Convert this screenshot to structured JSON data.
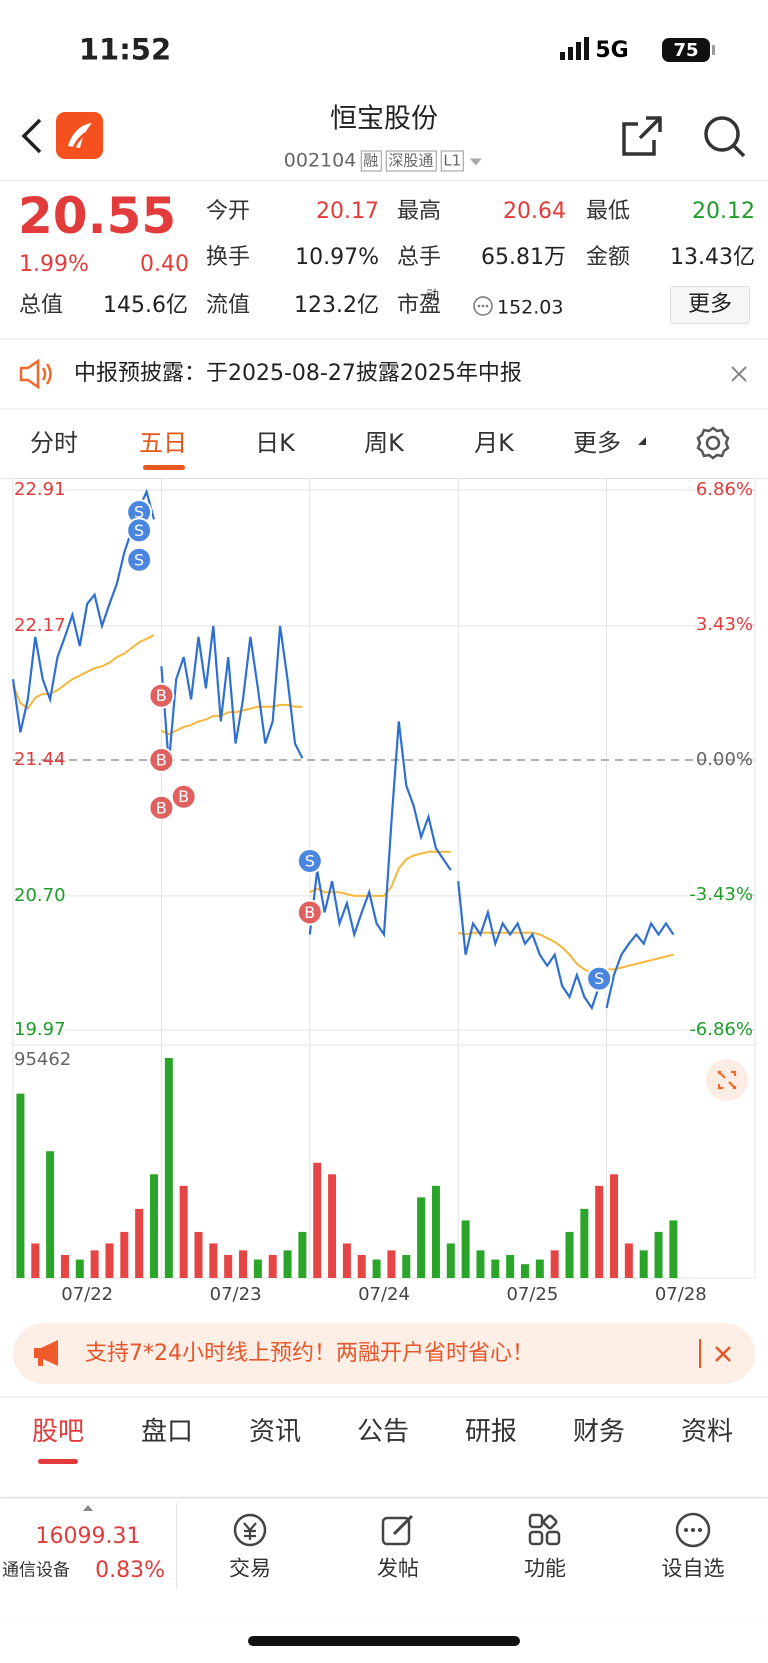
{
  "status": {
    "time": "11:52",
    "network": "5G",
    "battery": "75"
  },
  "header": {
    "title": "恒宝股份",
    "code": "002104",
    "tags": [
      "融",
      "深股通",
      "L1"
    ]
  },
  "quote": {
    "price": "20.55",
    "change_pct": "1.99%",
    "change": "0.40",
    "fields": [
      [
        "今开",
        "20.17"
      ],
      [
        "最高",
        "20.64"
      ],
      [
        "最低",
        "20.12"
      ],
      [
        "换手",
        "10.97%"
      ],
      [
        "总手",
        "65.81万"
      ],
      [
        "金额",
        "13.43亿"
      ],
      [
        "总值",
        "145.6亿"
      ],
      [
        "流值",
        "123.2亿"
      ],
      [
        "市盈",
        "152.03"
      ]
    ],
    "pe_sup": "动",
    "more": "更多"
  },
  "notice": "中报预披露：于2025-08-27披露2025年中报",
  "tabs": [
    "分时",
    "五日",
    "日K",
    "周K",
    "月K",
    "更多"
  ],
  "chart_data": {
    "type": "line",
    "ylim": [
      19.97,
      22.91
    ],
    "yticks": [
      19.97,
      {
        "value": 20.7,
        "label": "20.70"
      },
      21.44,
      22.17,
      22.91
    ],
    "y2lim": [
      -6.86,
      6.86
    ],
    "y2ticks": [
      {
        "value": -6.86,
        "label": "-6.86%"
      },
      {
        "value": -3.43,
        "label": "-3.43%"
      },
      {
        "value": 0,
        "label": "0.00%"
      },
      {
        "value": 3.43,
        "label": "3.43%"
      },
      {
        "value": 6.86,
        "label": "6.86%"
      }
    ],
    "volume_ylim": [
      0,
      95462
    ],
    "volume_ticks": [
      95462
    ],
    "price_color": "#2f6fcf",
    "avg_color": "#f5b73b",
    "up_color": "#e64545",
    "down_color": "#2aa52a",
    "days": [
      {
        "date": "07/22",
        "price": [
          21.88,
          21.59,
          21.77,
          22.11,
          21.88,
          21.77,
          22.0,
          22.11,
          22.23,
          22.06,
          22.29,
          22.34,
          22.17,
          22.29,
          22.4,
          22.57,
          22.69,
          22.81,
          22.9,
          22.75
        ],
        "avg": [
          21.85,
          21.75,
          21.72,
          21.78,
          21.8,
          21.8,
          21.82,
          21.85,
          21.88,
          21.9,
          21.92,
          21.94,
          21.95,
          21.97,
          22.0,
          22.02,
          22.05,
          22.08,
          22.1,
          22.12
        ],
        "volume": [
          80000,
          15000,
          55000,
          10000,
          8000,
          12000,
          15000,
          20000,
          30000,
          45000
        ]
      },
      {
        "date": "07/23",
        "price": [
          21.95,
          21.42,
          21.88,
          22.0,
          21.77,
          22.11,
          21.83,
          22.17,
          21.65,
          22.0,
          21.53,
          21.77,
          22.11,
          21.83,
          21.53,
          21.65,
          22.17,
          21.88,
          21.53,
          21.45
        ],
        "avg": [
          21.6,
          21.58,
          21.6,
          21.62,
          21.63,
          21.65,
          21.66,
          21.68,
          21.68,
          21.7,
          21.7,
          21.71,
          21.72,
          21.73,
          21.73,
          21.73,
          21.74,
          21.74,
          21.73,
          21.73
        ],
        "volume": [
          95462,
          40000,
          20000,
          15000,
          10000,
          12000,
          8000,
          10000,
          12000,
          20000
        ]
      },
      {
        "date": "07/24",
        "price": [
          20.49,
          20.84,
          20.61,
          20.78,
          20.55,
          20.66,
          20.49,
          20.61,
          20.72,
          20.55,
          20.49,
          21.1,
          21.65,
          21.3,
          21.19,
          21.02,
          21.13,
          20.96,
          20.9,
          20.84
        ],
        "avg": [
          20.72,
          20.74,
          20.72,
          20.72,
          20.72,
          20.71,
          20.7,
          20.7,
          20.7,
          20.7,
          20.7,
          20.75,
          20.85,
          20.9,
          20.92,
          20.93,
          20.94,
          20.94,
          20.94,
          20.94
        ],
        "volume": [
          50000,
          45000,
          15000,
          10000,
          8000,
          12000,
          10000,
          35000,
          40000,
          15000
        ]
      },
      {
        "date": "07/25",
        "price": [
          20.78,
          20.38,
          20.55,
          20.49,
          20.61,
          20.44,
          20.55,
          20.49,
          20.55,
          20.44,
          20.49,
          20.38,
          20.32,
          20.38,
          20.21,
          20.15,
          20.27,
          20.15,
          20.09,
          20.21
        ],
        "avg": [
          20.5,
          20.49,
          20.5,
          20.5,
          20.5,
          20.5,
          20.5,
          20.5,
          20.5,
          20.5,
          20.5,
          20.49,
          20.47,
          20.45,
          20.42,
          20.38,
          20.33,
          20.3,
          20.28,
          20.27
        ],
        "volume": [
          25000,
          12000,
          8000,
          10000,
          6000,
          8000,
          12000,
          20000,
          30000,
          40000
        ]
      },
      {
        "date": "07/28",
        "price": [
          20.09,
          20.27,
          20.38,
          20.44,
          20.49,
          20.44,
          20.55,
          20.49,
          20.55,
          20.49
        ],
        "avg": [
          20.3,
          20.3,
          20.31,
          20.32,
          20.33,
          20.34,
          20.35,
          20.36,
          20.37,
          20.38
        ],
        "volume": [
          45000,
          15000,
          12000,
          20000,
          25000
        ]
      }
    ],
    "markers": [
      {
        "label": "S",
        "day": 0,
        "index": 17,
        "value": 22.79
      },
      {
        "label": "S",
        "day": 0,
        "index": 17,
        "value": 22.69
      },
      {
        "label": "S",
        "day": 0,
        "index": 17,
        "value": 22.53
      },
      {
        "label": "B",
        "day": 1,
        "index": 0,
        "value": 21.79
      },
      {
        "label": "B",
        "day": 1,
        "index": 0,
        "value": 21.44
      },
      {
        "label": "B",
        "day": 1,
        "index": 0,
        "value": 21.18
      },
      {
        "label": "B",
        "day": 1,
        "index": 3,
        "value": 21.24
      },
      {
        "label": "S",
        "day": 2,
        "index": 0,
        "value": 20.89
      },
      {
        "label": "B",
        "day": 2,
        "index": 0,
        "value": 20.61
      },
      {
        "label": "S",
        "day": 3,
        "index": 19,
        "value": 20.25
      }
    ]
  },
  "banner": "支持7*24小时线上预约！两融开户省时省心！",
  "sections": [
    "股吧",
    "盘口",
    "资讯",
    "公告",
    "研报",
    "财务",
    "资料"
  ],
  "footer": {
    "index": "16099.31",
    "sector": "通信设备",
    "sector_pct": "0.83%",
    "nav": [
      "交易",
      "发帖",
      "功能",
      "设自选"
    ]
  }
}
